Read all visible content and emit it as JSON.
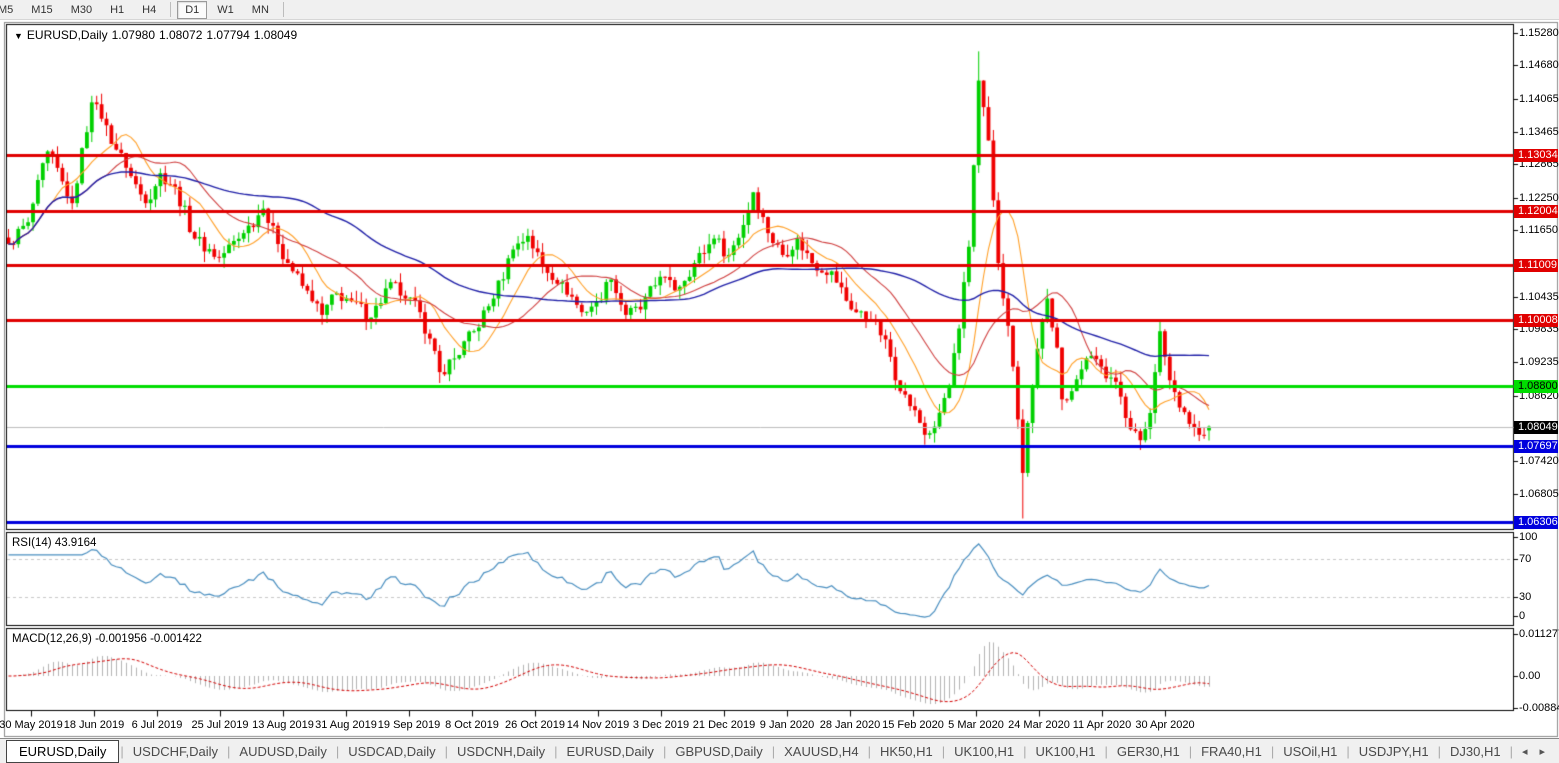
{
  "toolbar": {
    "timeframes": [
      "M5",
      "M15",
      "M30",
      "H1",
      "H4",
      "D1",
      "W1",
      "MN"
    ],
    "selected": "D1"
  },
  "icons": {
    "dropdown": "▼",
    "scroll_left": "◂",
    "scroll_right": "▸"
  },
  "header": {
    "symbol": "EURUSD,Daily",
    "open": "1.07980",
    "high": "1.08072",
    "low": "1.07794",
    "close": "1.08049"
  },
  "price_axis": {
    "ticks": [
      "1.15280",
      "1.14680",
      "1.14065",
      "1.13465",
      "1.12865",
      "1.12250",
      "1.11650",
      "1.10435",
      "1.09835",
      "1.09235",
      "1.08620",
      "1.07420",
      "1.06805"
    ]
  },
  "levels": {
    "red_lines": [
      {
        "price": 1.13034,
        "label": "1.13034"
      },
      {
        "price": 1.12004,
        "label": "1.12004"
      },
      {
        "price": 1.11009,
        "label": "1.11009"
      },
      {
        "price": 1.10008,
        "label": "1.10008"
      }
    ],
    "green_lines": [
      {
        "price": 1.088,
        "label": "1.08800"
      }
    ],
    "blue_lines": [
      {
        "price": 1.07697,
        "label": "1.07697"
      },
      {
        "price": 1.06306,
        "label": "1.06306"
      }
    ],
    "current": {
      "price": 1.08049,
      "label": "1.08049"
    }
  },
  "colors": {
    "bull": "#00d000",
    "bear": "#f00000",
    "red_line": "#e00000",
    "green_line": "#00dd00",
    "blue_line": "#0000dd",
    "current_line": "#bdbdbd",
    "ma_fast": "#ffa028",
    "ma_mid": "#d04040",
    "ma_slow": "#2020a8",
    "rsi_line": "#4a8fc0",
    "rsi_levels": "#c8c8c8",
    "macd_hist": "#b4b4b4",
    "macd_signal": "#d40000",
    "frame": "#000000",
    "window_frame": "#8a8a8a"
  },
  "chart_data": {
    "type": "candlestick",
    "symbol": "EURUSD",
    "timeframe": "Daily",
    "count": 246,
    "visible_price_range": [
      1.06171,
      1.15438
    ],
    "last_candle": [
      1.0798,
      1.08072,
      1.07794,
      1.08049
    ],
    "close_anchors": [
      [
        0,
        1.114
      ],
      [
        4,
        1.118
      ],
      [
        8,
        1.131
      ],
      [
        11,
        1.1255
      ],
      [
        13,
        1.1215
      ],
      [
        17,
        1.14
      ],
      [
        19,
        1.137
      ],
      [
        24,
        1.128
      ],
      [
        28,
        1.1215
      ],
      [
        31,
        1.127
      ],
      [
        34,
        1.1245
      ],
      [
        38,
        1.115
      ],
      [
        43,
        1.1115
      ],
      [
        48,
        1.116
      ],
      [
        52,
        1.1205
      ],
      [
        55,
        1.114
      ],
      [
        58,
        1.109
      ],
      [
        62,
        1.1035
      ],
      [
        64,
        1.101
      ],
      [
        67,
        1.105
      ],
      [
        70,
        1.1035
      ],
      [
        74,
        1.1005
      ],
      [
        78,
        1.107
      ],
      [
        81,
        1.104
      ],
      [
        84,
        1.1015
      ],
      [
        88,
        1.0905
      ],
      [
        91,
        1.093
      ],
      [
        95,
        1.098
      ],
      [
        99,
        1.104
      ],
      [
        103,
        1.113
      ],
      [
        106,
        1.1155
      ],
      [
        109,
        1.11
      ],
      [
        113,
        1.107
      ],
      [
        117,
        1.1015
      ],
      [
        120,
        1.1035
      ],
      [
        123,
        1.1075
      ],
      [
        126,
        1.101
      ],
      [
        129,
        1.102
      ],
      [
        133,
        1.108
      ],
      [
        136,
        1.1055
      ],
      [
        140,
        1.1105
      ],
      [
        144,
        1.115
      ],
      [
        147,
        1.112
      ],
      [
        150,
        1.1175
      ],
      [
        152,
        1.1235
      ],
      [
        155,
        1.116
      ],
      [
        158,
        1.112
      ],
      [
        161,
        1.115
      ],
      [
        164,
        1.1105
      ],
      [
        168,
        1.109
      ],
      [
        172,
        1.102
      ],
      [
        176,
        1.1
      ],
      [
        179,
        1.0965
      ],
      [
        182,
        1.087
      ],
      [
        185,
        1.0835
      ],
      [
        187,
        1.079
      ],
      [
        189,
        1.0805
      ],
      [
        192,
        1.088
      ],
      [
        194,
        1.0985
      ],
      [
        196,
        1.1135
      ],
      [
        198,
        1.144
      ],
      [
        200,
        1.133
      ],
      [
        202,
        1.1105
      ],
      [
        204,
        1.099
      ],
      [
        205,
        1.0915
      ],
      [
        207,
        1.072
      ],
      [
        209,
        1.088
      ],
      [
        211,
        1.1
      ],
      [
        212,
        1.104
      ],
      [
        214,
        1.095
      ],
      [
        215,
        1.0855
      ],
      [
        217,
        1.087
      ],
      [
        219,
        1.091
      ],
      [
        221,
        1.0935
      ],
      [
        223,
        1.0915
      ],
      [
        225,
        1.0895
      ],
      [
        227,
        1.086
      ],
      [
        229,
        1.08
      ],
      [
        231,
        1.078
      ],
      [
        233,
        1.083
      ],
      [
        235,
        1.098
      ],
      [
        237,
        1.089
      ],
      [
        239,
        1.084
      ],
      [
        241,
        1.081
      ],
      [
        243,
        1.079
      ],
      [
        245,
        1.08049
      ]
    ],
    "wick_overrides": [
      [
        17,
        "high",
        1.1412
      ],
      [
        88,
        "low",
        1.0885
      ],
      [
        187,
        "low",
        1.0778
      ],
      [
        198,
        "high",
        1.14936
      ],
      [
        207,
        "low",
        1.06364
      ],
      [
        235,
        "high",
        1.10008
      ]
    ],
    "x_labels": [
      "30 May 2019",
      "18 Jun 2019",
      "6 Jul 2019",
      "25 Jul 2019",
      "13 Aug 2019",
      "31 Aug 2019",
      "19 Sep 2019",
      "8 Oct 2019",
      "26 Oct 2019",
      "14 Nov 2019",
      "3 Dec 2019",
      "21 Dec 2019",
      "9 Jan 2020",
      "28 Jan 2020",
      "15 Feb 2020",
      "5 Mar 2020",
      "24 Mar 2020",
      "11 Apr 2020",
      "30 Apr 2020"
    ],
    "moving_averages": [
      {
        "period": 10,
        "color_key": "ma_fast"
      },
      {
        "period": 21,
        "color_key": "ma_mid"
      },
      {
        "period": 55,
        "color_key": "ma_slow"
      }
    ]
  },
  "rsi": {
    "label": "RSI(14) 43.9164",
    "name": "RSI",
    "period": 14,
    "value": 43.9164,
    "levels": [
      70,
      30
    ],
    "scale_ticks": [
      "100",
      "70",
      "30",
      "0"
    ],
    "range": [
      0,
      100
    ]
  },
  "macd": {
    "label": "MACD(12,26,9) -0.001956 -0.001422",
    "name": "MACD",
    "params": "12,26,9",
    "value": -0.001956,
    "signal": -0.001422,
    "scale_ticks": [
      "0.011277",
      "0.00",
      "-0.008845"
    ]
  },
  "tabs": {
    "active_index": 0,
    "items": [
      "EURUSD,Daily",
      "USDCHF,Daily",
      "AUDUSD,Daily",
      "USDCAD,Daily",
      "USDCNH,Daily",
      "EURUSD,Daily",
      "GBPUSD,Daily",
      "XAUUSD,H4",
      "HK50,H1",
      "UK100,H1",
      "UK100,H1",
      "GER30,H1",
      "FRA40,H1",
      "USOil,H1",
      "USDJPY,H1",
      "DJ30,H1"
    ]
  }
}
